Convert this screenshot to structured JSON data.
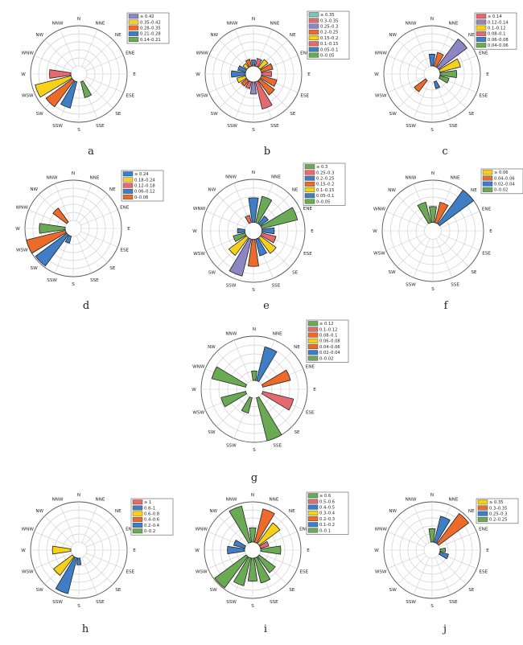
{
  "directions": [
    "N",
    "NNE",
    "NE",
    "ENE",
    "E",
    "ESE",
    "SE",
    "SSE",
    "S",
    "SSW",
    "SW",
    "WSW",
    "W",
    "WNW",
    "NW",
    "NNW"
  ],
  "colors": {
    "green": "#6aaa55",
    "blue": "#3f7ec4",
    "orange": "#ec6a2a",
    "yellow": "#f7d117",
    "red": "#e36a6e",
    "purple": "#8e86c2",
    "teal": "#7ec3b6",
    "grid": "#cfcfcf",
    "outline": "#222222"
  },
  "chart_data": [
    {
      "type": "wind-rose",
      "panel": "a",
      "legend": [
        {
          "label": "≥ 0.42",
          "color": "purple"
        },
        {
          "label": "0.35–0.42",
          "color": "yellow"
        },
        {
          "label": "0.28–0.35",
          "color": "orange"
        },
        {
          "label": "0.21–0.28",
          "color": "blue"
        },
        {
          "label": "0.14–0.21",
          "color": "green"
        }
      ],
      "rmax": 0.49,
      "petals": [
        {
          "dir": "SSE",
          "value": 0.2,
          "color": "green"
        },
        {
          "dir": "SSW",
          "value": 0.33,
          "color": "blue"
        },
        {
          "dir": "SW",
          "value": 0.4,
          "color": "orange"
        },
        {
          "dir": "WSW",
          "value": 0.45,
          "color": "yellow"
        },
        {
          "dir": "W",
          "value": 0.26,
          "color": "red"
        }
      ]
    },
    {
      "type": "wind-rose",
      "panel": "b",
      "legend": [
        {
          "label": "≥ 0.35",
          "color": "teal"
        },
        {
          "label": "0.3–0.35",
          "color": "red"
        },
        {
          "label": "0.25–0.3",
          "color": "purple"
        },
        {
          "label": "0.2–0.25",
          "color": "orange"
        },
        {
          "label": "0.15–0.2",
          "color": "yellow"
        },
        {
          "label": "0.1–0.15",
          "color": "red"
        },
        {
          "label": "0.05–0.1",
          "color": "blue"
        },
        {
          "label": "0–0.05",
          "color": "green"
        }
      ],
      "rmax": 0.4,
      "petals": [
        {
          "dir": "SSE",
          "value": 0.28,
          "color": "red"
        },
        {
          "dir": "SE",
          "value": 0.18,
          "color": "orange"
        },
        {
          "dir": "ESE",
          "value": 0.16,
          "color": "orange"
        },
        {
          "dir": "E",
          "value": 0.1,
          "color": "red"
        },
        {
          "dir": "ENE",
          "value": 0.12,
          "color": "orange"
        },
        {
          "dir": "NE",
          "value": 0.1,
          "color": "yellow"
        },
        {
          "dir": "NNE",
          "value": 0.08,
          "color": "red"
        },
        {
          "dir": "N",
          "value": 0.06,
          "color": "blue"
        },
        {
          "dir": "NNW",
          "value": 0.07,
          "color": "orange"
        },
        {
          "dir": "NW",
          "value": 0.05,
          "color": "yellow"
        },
        {
          "dir": "WNW",
          "value": 0.08,
          "color": "blue"
        },
        {
          "dir": "W",
          "value": 0.14,
          "color": "blue"
        },
        {
          "dir": "WSW",
          "value": 0.09,
          "color": "yellow"
        },
        {
          "dir": "SW",
          "value": 0.07,
          "color": "orange"
        },
        {
          "dir": "SSW",
          "value": 0.07,
          "color": "red"
        },
        {
          "dir": "S",
          "value": 0.12,
          "color": "purple"
        }
      ]
    },
    {
      "type": "wind-rose",
      "panel": "c",
      "legend": [
        {
          "label": "≥ 0.14",
          "color": "red"
        },
        {
          "label": "0.12–0.14",
          "color": "purple"
        },
        {
          "label": "0.1–0.12",
          "color": "yellow"
        },
        {
          "label": "0.08–0.1",
          "color": "red"
        },
        {
          "label": "0.06–0.08",
          "color": "blue"
        },
        {
          "label": "0.04–0.06",
          "color": "green"
        }
      ],
      "rmax": 0.17,
      "petals": [
        {
          "dir": "NE",
          "value": 0.15,
          "color": "purple"
        },
        {
          "dir": "ENE",
          "value": 0.09,
          "color": "yellow"
        },
        {
          "dir": "NNE",
          "value": 0.06,
          "color": "orange"
        },
        {
          "dir": "N",
          "value": 0.05,
          "color": "blue"
        },
        {
          "dir": "E",
          "value": 0.07,
          "color": "green"
        },
        {
          "dir": "ESE",
          "value": 0.04,
          "color": "green"
        },
        {
          "dir": "SW",
          "value": 0.06,
          "color": "orange"
        },
        {
          "dir": "SSE",
          "value": 0.03,
          "color": "blue"
        }
      ]
    },
    {
      "type": "wind-rose",
      "panel": "d",
      "legend": [
        {
          "label": "≥ 0.24",
          "color": "blue"
        },
        {
          "label": "0.18–0.24",
          "color": "yellow"
        },
        {
          "label": "0.12–0.18",
          "color": "red"
        },
        {
          "label": "0.06–0.12",
          "color": "blue"
        },
        {
          "label": "0–0.06",
          "color": "orange"
        }
      ],
      "rmax": 0.28,
      "petals": [
        {
          "dir": "SW",
          "value": 0.27,
          "color": "blue"
        },
        {
          "dir": "WSW",
          "value": 0.28,
          "color": "orange"
        },
        {
          "dir": "W",
          "value": 0.18,
          "color": "green"
        },
        {
          "dir": "NW",
          "value": 0.12,
          "color": "orange"
        },
        {
          "dir": "SSW",
          "value": 0.05,
          "color": "blue"
        }
      ]
    },
    {
      "type": "wind-rose",
      "panel": "e",
      "legend": [
        {
          "label": "≥ 0.3",
          "color": "green"
        },
        {
          "label": "0.25–0.3",
          "color": "red"
        },
        {
          "label": "0.2–0.25",
          "color": "blue"
        },
        {
          "label": "0.15–0.2",
          "color": "orange"
        },
        {
          "label": "0.1–0.15",
          "color": "yellow"
        },
        {
          "label": "0.05–0.1",
          "color": "blue"
        },
        {
          "label": "0–0.05",
          "color": "green"
        }
      ],
      "rmax": 0.35,
      "petals": [
        {
          "dir": "ENE",
          "value": 0.3,
          "color": "green"
        },
        {
          "dir": "NNE",
          "value": 0.22,
          "color": "green"
        },
        {
          "dir": "N",
          "value": 0.2,
          "color": "blue"
        },
        {
          "dir": "NE",
          "value": 0.08,
          "color": "blue"
        },
        {
          "dir": "E",
          "value": 0.1,
          "color": "blue"
        },
        {
          "dir": "ESE",
          "value": 0.12,
          "color": "red"
        },
        {
          "dir": "SE",
          "value": 0.16,
          "color": "yellow"
        },
        {
          "dir": "SSE",
          "value": 0.14,
          "color": "blue"
        },
        {
          "dir": "S",
          "value": 0.22,
          "color": "orange"
        },
        {
          "dir": "SSW",
          "value": 0.31,
          "color": "purple"
        },
        {
          "dir": "SW",
          "value": 0.18,
          "color": "yellow"
        },
        {
          "dir": "WSW",
          "value": 0.1,
          "color": "green"
        },
        {
          "dir": "W",
          "value": 0.06,
          "color": "blue"
        },
        {
          "dir": "NNW",
          "value": 0.06,
          "color": "red"
        }
      ]
    },
    {
      "type": "wind-rose",
      "panel": "f",
      "legend": [
        {
          "label": "≥ 0.06",
          "color": "yellow"
        },
        {
          "label": "0.04–0.06",
          "color": "orange"
        },
        {
          "label": "0.02–0.04",
          "color": "blue"
        },
        {
          "label": "0–0.02",
          "color": "green"
        }
      ],
      "rmax": 0.08,
      "petals": [
        {
          "dir": "NE",
          "value": 0.08,
          "color": "blue"
        },
        {
          "dir": "NNE",
          "value": 0.04,
          "color": "orange"
        },
        {
          "dir": "N",
          "value": 0.03,
          "color": "green"
        },
        {
          "dir": "NNW",
          "value": 0.04,
          "color": "green"
        }
      ]
    },
    {
      "type": "wind-rose",
      "panel": "g",
      "legend": [
        {
          "label": "≥ 0.12",
          "color": "green"
        },
        {
          "label": "0.1–0.12",
          "color": "red"
        },
        {
          "label": "0.08–0.1",
          "color": "orange"
        },
        {
          "label": "0.06–0.08",
          "color": "yellow"
        },
        {
          "label": "0.04–0.06",
          "color": "orange"
        },
        {
          "label": "0.02–0.04",
          "color": "blue"
        },
        {
          "label": "0–0.02",
          "color": "green"
        }
      ],
      "rmax": 0.14,
      "petals": [
        {
          "dir": "NNE",
          "value": 0.11,
          "color": "blue"
        },
        {
          "dir": "ENE",
          "value": 0.09,
          "color": "orange"
        },
        {
          "dir": "ESE",
          "value": 0.1,
          "color": "red"
        },
        {
          "dir": "SSE",
          "value": 0.14,
          "color": "green"
        },
        {
          "dir": "SSW",
          "value": 0.05,
          "color": "green"
        },
        {
          "dir": "WSW",
          "value": 0.08,
          "color": "green"
        },
        {
          "dir": "WNW",
          "value": 0.11,
          "color": "green"
        },
        {
          "dir": "N",
          "value": 0.03,
          "color": "green"
        }
      ]
    },
    {
      "type": "wind-rose",
      "panel": "h",
      "legend": [
        {
          "label": "≥ 1",
          "color": "red"
        },
        {
          "label": "0.8–1",
          "color": "blue"
        },
        {
          "label": "0.6–0.8",
          "color": "yellow"
        },
        {
          "label": "0.4–0.6",
          "color": "orange"
        },
        {
          "label": "0.2–0.4",
          "color": "blue"
        },
        {
          "label": "0–0.2",
          "color": "green"
        }
      ],
      "rmax": 1.2,
      "petals": [
        {
          "dir": "SSW",
          "value": 1.1,
          "color": "blue"
        },
        {
          "dir": "SW",
          "value": 0.7,
          "color": "yellow"
        },
        {
          "dir": "W",
          "value": 0.55,
          "color": "yellow"
        },
        {
          "dir": "S",
          "value": 0.2,
          "color": "blue"
        }
      ]
    },
    {
      "type": "wind-rose",
      "panel": "i",
      "legend": [
        {
          "label": "≥ 0.6",
          "color": "green"
        },
        {
          "label": "0.5–0.6",
          "color": "red"
        },
        {
          "label": "0.4–0.5",
          "color": "blue"
        },
        {
          "label": "0.3–0.4",
          "color": "yellow"
        },
        {
          "label": "0.2–0.3",
          "color": "orange"
        },
        {
          "label": "0.1–0.2",
          "color": "blue"
        },
        {
          "label": "0–0.1",
          "color": "green"
        }
      ],
      "rmax": 0.7,
      "petals": [
        {
          "dir": "SW",
          "value": 0.68,
          "color": "green"
        },
        {
          "dir": "SSW",
          "value": 0.5,
          "color": "green"
        },
        {
          "dir": "S",
          "value": 0.4,
          "color": "green"
        },
        {
          "dir": "SSE",
          "value": 0.45,
          "color": "green"
        },
        {
          "dir": "SE",
          "value": 0.35,
          "color": "green"
        },
        {
          "dir": "E",
          "value": 0.35,
          "color": "green"
        },
        {
          "dir": "NE",
          "value": 0.45,
          "color": "yellow"
        },
        {
          "dir": "NNE",
          "value": 0.6,
          "color": "orange"
        },
        {
          "dir": "N",
          "value": 0.25,
          "color": "green"
        },
        {
          "dir": "NNW",
          "value": 0.65,
          "color": "green"
        },
        {
          "dir": "W",
          "value": 0.3,
          "color": "blue"
        },
        {
          "dir": "WNW",
          "value": 0.2,
          "color": "blue"
        },
        {
          "dir": "ENE",
          "value": 0.15,
          "color": "red"
        }
      ]
    },
    {
      "type": "wind-rose",
      "panel": "j",
      "legend": [
        {
          "label": "≥ 0.35",
          "color": "yellow"
        },
        {
          "label": "0.3–0.35",
          "color": "orange"
        },
        {
          "label": "0.25–0.3",
          "color": "blue"
        },
        {
          "label": "0.2–0.25",
          "color": "green"
        }
      ],
      "rmax": 0.45,
      "petals": [
        {
          "dir": "NE",
          "value": 0.42,
          "color": "orange"
        },
        {
          "dir": "NNE",
          "value": 0.3,
          "color": "blue"
        },
        {
          "dir": "N",
          "value": 0.15,
          "color": "green"
        },
        {
          "dir": "ESE",
          "value": 0.1,
          "color": "blue"
        },
        {
          "dir": "E",
          "value": 0.06,
          "color": "green"
        }
      ]
    }
  ]
}
